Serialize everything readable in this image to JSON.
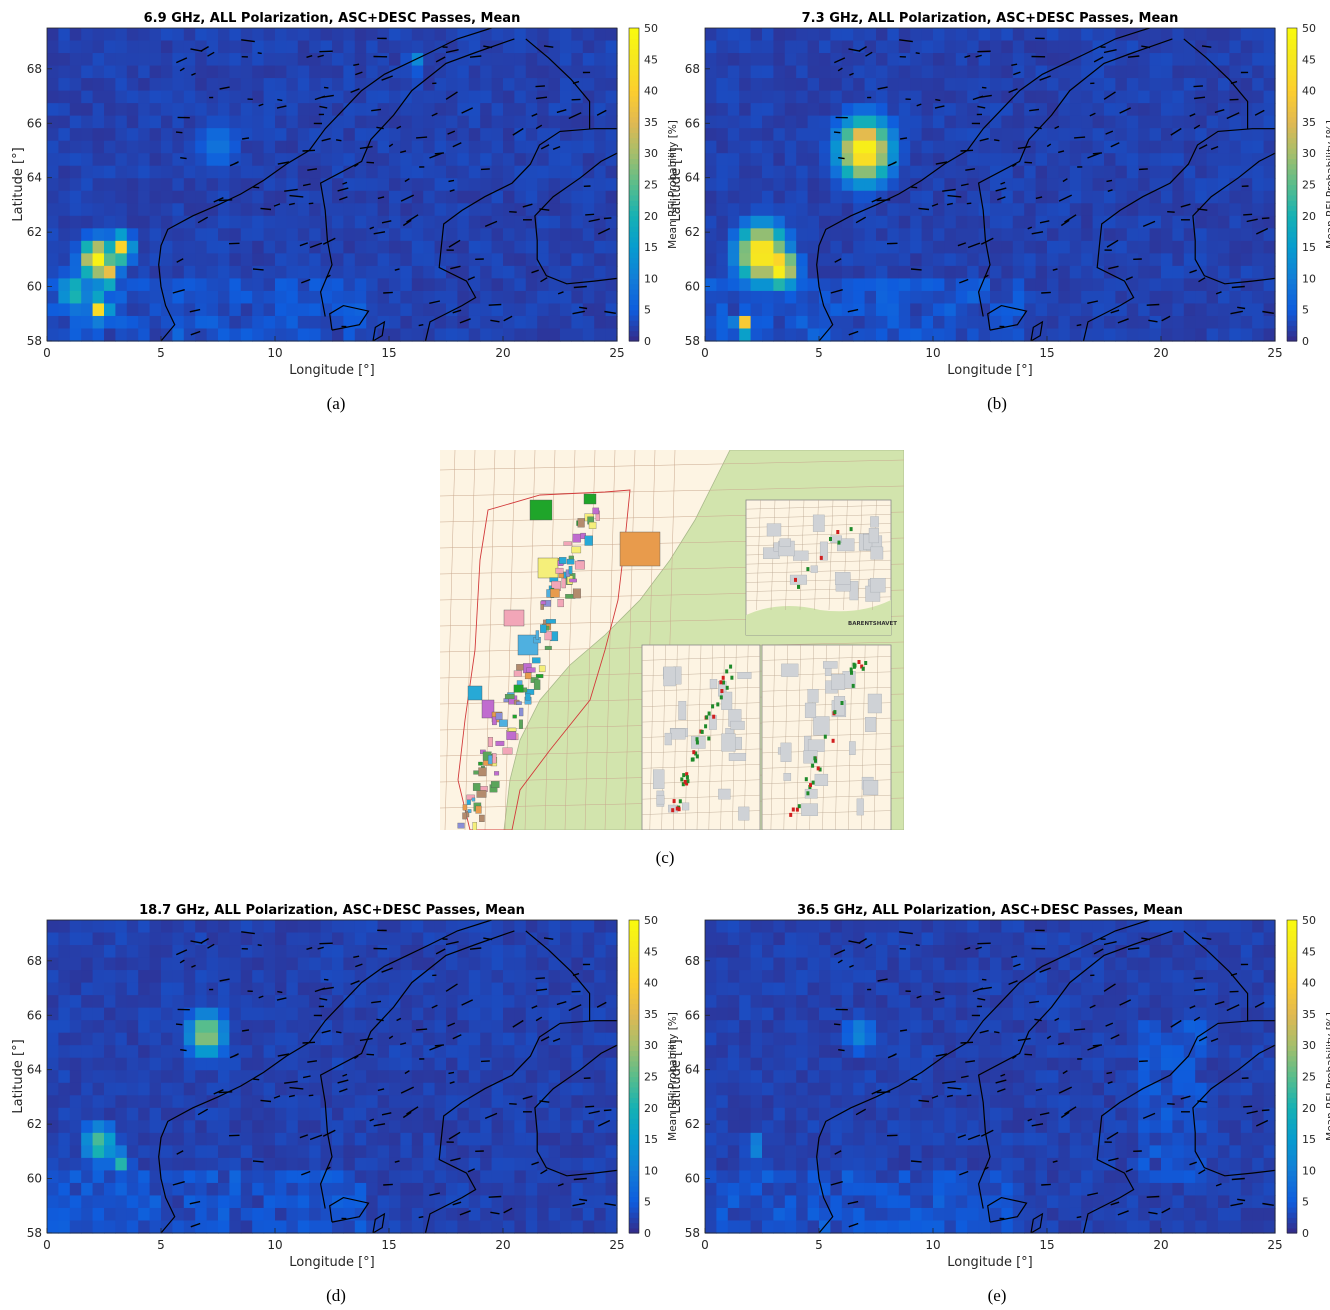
{
  "panels": [
    {
      "id": "a",
      "caption": "(a)",
      "title": "6.9 GHz, ALL Polarization, ASC+DESC Passes, Mean",
      "blobs": [
        {
          "lon": 2.2,
          "lat": 61.0,
          "value": 48,
          "r": 0.8
        },
        {
          "lon": 3.2,
          "lat": 61.4,
          "value": 42,
          "r": 0.6
        },
        {
          "lon": 2.6,
          "lat": 60.5,
          "value": 40,
          "r": 0.6
        },
        {
          "lon": 2.3,
          "lat": 59.2,
          "value": 44,
          "r": 0.5
        },
        {
          "lon": 1.2,
          "lat": 59.8,
          "value": 22,
          "r": 0.8
        },
        {
          "lon": 7.5,
          "lat": 65.2,
          "value": 9,
          "r": 1.1
        },
        {
          "lon": 16.2,
          "lat": 68.3,
          "value": 12,
          "r": 0.5
        }
      ]
    },
    {
      "id": "b",
      "caption": "(b)",
      "title": "7.3 GHz, ALL Polarization, ASC+DESC Passes, Mean",
      "blobs": [
        {
          "lon": 7.0,
          "lat": 65.0,
          "value": 50,
          "r": 1.3
        },
        {
          "lon": 2.5,
          "lat": 61.2,
          "value": 50,
          "r": 1.2
        },
        {
          "lon": 3.3,
          "lat": 60.7,
          "value": 50,
          "r": 0.8
        },
        {
          "lon": 1.7,
          "lat": 58.6,
          "value": 42,
          "r": 0.45
        }
      ]
    },
    {
      "id": "d",
      "caption": "(d)",
      "title": "18.7 GHz, ALL Polarization, ASC+DESC Passes, Mean",
      "blobs": [
        {
          "lon": 7.0,
          "lat": 65.3,
          "value": 32,
          "r": 0.9
        },
        {
          "lon": 2.3,
          "lat": 61.3,
          "value": 25,
          "r": 0.8
        },
        {
          "lon": 3.2,
          "lat": 60.6,
          "value": 22,
          "r": 0.5
        }
      ]
    },
    {
      "id": "e",
      "caption": "(e)",
      "title": "36.5 GHz, ALL Polarization, ASC+DESC Passes, Mean",
      "blobs": [
        {
          "lon": 6.8,
          "lat": 65.3,
          "value": 12,
          "r": 0.8
        },
        {
          "lon": 2.2,
          "lat": 61.2,
          "value": 14,
          "r": 0.5
        },
        {
          "lon": 21.0,
          "lat": 64.0,
          "value": 10,
          "r": 0.5
        }
      ]
    }
  ],
  "axes": {
    "xlabel": "Longitude [°]",
    "ylabel": "Latitude [°]",
    "colorbar_label": "Mean RFI Probability [%]",
    "xticks": [
      0,
      5,
      10,
      15,
      20,
      25
    ],
    "yticks": [
      58,
      60,
      62,
      64,
      66,
      68
    ],
    "cbticks": [
      0,
      5,
      10,
      15,
      20,
      25,
      30,
      35,
      40,
      45,
      50
    ],
    "xlim": [
      0,
      25
    ],
    "ylim": [
      58,
      69.5
    ],
    "clim": [
      0,
      50
    ],
    "colormap": "parula"
  },
  "map_c": {
    "caption": "(c)",
    "inset_label": "BARENTSHAVET",
    "colors": {
      "sea": "#fdf4e3",
      "land": "#d2e4ad",
      "block_grid": "#c9a98f",
      "boundary": "#d23b3b"
    }
  },
  "chart_data": [
    {
      "type": "heatmap",
      "title": "6.9 GHz, ALL Polarization, ASC+DESC Passes, Mean",
      "xlabel": "Longitude [°]",
      "ylabel": "Latitude [°]",
      "colorbar": "Mean RFI Probability [%]",
      "xlim": [
        0,
        25
      ],
      "ylim": [
        58,
        69.5
      ],
      "clim": [
        0,
        50
      ]
    },
    {
      "type": "heatmap",
      "title": "7.3 GHz, ALL Polarization, ASC+DESC Passes, Mean",
      "xlabel": "Longitude [°]",
      "ylabel": "Latitude [°]",
      "colorbar": "Mean RFI Probability [%]",
      "xlim": [
        0,
        25
      ],
      "ylim": [
        58,
        69.5
      ],
      "clim": [
        0,
        50
      ]
    },
    {
      "type": "heatmap",
      "title": "18.7 GHz, ALL Polarization, ASC+DESC Passes, Mean",
      "xlabel": "Longitude [°]",
      "ylabel": "Latitude [°]",
      "colorbar": "Mean RFI Probability [%]",
      "xlim": [
        0,
        25
      ],
      "ylim": [
        58,
        69.5
      ],
      "clim": [
        0,
        50
      ]
    },
    {
      "type": "heatmap",
      "title": "36.5 GHz, ALL Polarization, ASC+DESC Passes, Mean",
      "xlabel": "Longitude [°]",
      "ylabel": "Latitude [°]",
      "colorbar": "Mean RFI Probability [%]",
      "xlim": [
        0,
        25
      ],
      "ylim": [
        58,
        69.5
      ],
      "clim": [
        0,
        50
      ]
    }
  ]
}
